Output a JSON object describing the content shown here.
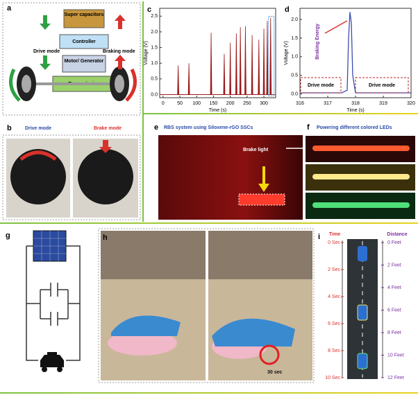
{
  "chart_data": [
    {
      "type": "spike",
      "panel": "c",
      "xlabel": "Time (s)",
      "ylabel": "Voltage (V)",
      "color": "#9b1b1b",
      "x": [
        45,
        77,
        143,
        182,
        200,
        218,
        230,
        245,
        265,
        285,
        300,
        310,
        320
      ],
      "values": [
        0.93,
        1.0,
        1.97,
        1.3,
        1.65,
        1.95,
        2.15,
        2.18,
        1.9,
        1.75,
        2.1,
        2.35,
        2.45
      ],
      "xlim": [
        -10,
        335
      ],
      "ylim": [
        -0.1,
        2.75
      ],
      "xticks": [
        0,
        50,
        100,
        150,
        200,
        250,
        300
      ],
      "yticks": [
        {
          "value": 0,
          "label": "0.0"
        },
        0.5,
        {
          "value": 1,
          "label": "1.0"
        },
        1.5,
        {
          "value": 2,
          "label": "2.0"
        },
        2.5
      ]
    },
    {
      "type": "line",
      "panel": "d",
      "xlabel": "Time (s)",
      "ylabel": "Voltage (V)",
      "color": "#3a4bb0",
      "x": [
        316,
        317.5,
        317.7,
        317.75,
        317.8,
        317.85,
        317.9,
        318,
        320
      ],
      "values": [
        0.03,
        0.03,
        0.1,
        1.5,
        2.2,
        1.9,
        0.5,
        0.03,
        0.03
      ],
      "xlim": [
        316,
        320
      ],
      "ylim": [
        -0.1,
        2.3
      ],
      "xticks": [
        316,
        317,
        318,
        319,
        320
      ],
      "yticks": [
        {
          "value": 0,
          "label": "0.0"
        },
        0.5,
        {
          "value": 1,
          "label": "1.0"
        },
        1.5,
        {
          "value": 2,
          "label": "2.0"
        }
      ],
      "annotations": [
        "Braking Energy",
        "Drive mode",
        "Drive mode"
      ]
    }
  ],
  "panel_a": {
    "label": "a",
    "boxes": [
      "Super capacitors",
      "Controller",
      "Motor/ Generator",
      "Transmission"
    ],
    "drive": "Drive mode",
    "braking": "Braking mode"
  },
  "panel_b": {
    "label": "b",
    "titles": [
      "Drive mode",
      "Brake mode"
    ]
  },
  "panel_e": {
    "label": "e",
    "title": "RBS system using Siloxene-rGO SSCs",
    "callout": "Brake light"
  },
  "panel_f": {
    "label": "f",
    "title": "Powering different colored LEDs"
  },
  "panel_g": {
    "label": "g"
  },
  "panel_h": {
    "label": "h",
    "timer": "30 sec"
  },
  "panel_i": {
    "label": "i",
    "time_title": "Time",
    "distance_title": "Distance",
    "times": [
      "0 Sec",
      "2 Sec",
      "4 Sec",
      "6 Sec",
      "8 Sec",
      "10 Sec"
    ],
    "distances": [
      "0 Feet",
      "2 Feet",
      "4 Feet",
      "6 Feet",
      "8 Feet",
      "10 Feet",
      "12 Feet"
    ]
  }
}
